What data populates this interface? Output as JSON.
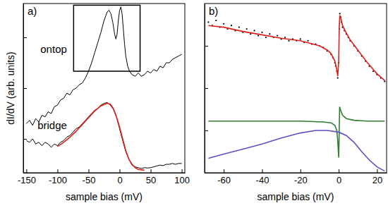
{
  "chart_data": [
    {
      "type": "line",
      "title": "a)",
      "x_label": "sample bias (mV)",
      "y_label": "dI/dV (arb. units)",
      "xlim": [
        -155,
        105
      ],
      "xticks": [
        -150,
        -100,
        -50,
        0,
        50,
        100
      ],
      "ylim": [
        0,
        10
      ],
      "yticks": [
        2,
        5,
        8
      ],
      "tick_labels": "x",
      "box": {
        "x": [
          -74,
          33
        ],
        "y": [
          6.0,
          9.9
        ]
      },
      "series": [
        {
          "name": "ontop",
          "color": "#000000",
          "type": "line",
          "x": [
            -150,
            -145,
            -140,
            -135,
            -130,
            -125,
            -120,
            -115,
            -110,
            -105,
            -100,
            -95,
            -90,
            -85,
            -80,
            -75,
            -70,
            -65,
            -60,
            -55,
            -50,
            -45,
            -40,
            -35,
            -30,
            -25,
            -20,
            -17,
            -14,
            -11,
            -8,
            -6,
            -4,
            -2,
            0,
            2,
            4,
            6,
            8,
            10,
            13,
            16,
            20,
            25,
            30,
            35,
            40,
            45,
            50,
            55,
            60,
            65,
            70,
            75,
            80,
            85,
            90,
            95,
            100
          ],
          "values": [
            2.9,
            3.1,
            2.8,
            3.2,
            3.0,
            3.4,
            3.3,
            3.6,
            3.5,
            3.9,
            4.0,
            4.3,
            4.4,
            4.7,
            4.6,
            4.9,
            5.0,
            5.2,
            5.3,
            5.6,
            6.0,
            6.5,
            7.1,
            7.7,
            8.3,
            9.0,
            9.5,
            9.6,
            9.4,
            8.9,
            8.2,
            7.9,
            8.2,
            9.0,
            9.6,
            9.8,
            9.4,
            8.5,
            7.6,
            6.9,
            6.3,
            6.0,
            5.8,
            5.7,
            5.9,
            5.7,
            5.8,
            6.0,
            5.9,
            6.1,
            6.0,
            6.3,
            6.2,
            6.5,
            6.5,
            6.7,
            6.8,
            6.9,
            7.0
          ]
        },
        {
          "name": "bridge",
          "color": "#000000",
          "type": "line",
          "x": [
            -150,
            -145,
            -140,
            -135,
            -130,
            -125,
            -120,
            -115,
            -110,
            -105,
            -100,
            -95,
            -90,
            -85,
            -80,
            -75,
            -70,
            -65,
            -60,
            -55,
            -50,
            -45,
            -40,
            -35,
            -30,
            -25,
            -20,
            -15,
            -10,
            -5,
            0,
            5,
            10,
            15,
            20,
            25,
            30,
            35,
            40,
            45,
            50,
            55,
            60,
            65,
            70,
            75,
            80,
            85,
            90,
            95,
            100
          ],
          "values": [
            1.9,
            1.8,
            2.0,
            1.7,
            1.8,
            1.6,
            1.8,
            1.7,
            1.5,
            1.7,
            1.6,
            1.8,
            1.9,
            2.1,
            2.2,
            2.4,
            2.6,
            2.7,
            2.9,
            3.1,
            3.3,
            3.5,
            3.7,
            3.8,
            4.0,
            4.1,
            4.15,
            4.0,
            3.75,
            3.3,
            2.6,
            1.9,
            1.25,
            0.8,
            0.45,
            0.35,
            0.3,
            0.25,
            0.3,
            0.28,
            0.3,
            0.35,
            0.4,
            0.45,
            0.42,
            0.5,
            0.5,
            0.55,
            0.5,
            0.55,
            0.55
          ]
        },
        {
          "color": "#e0201b",
          "type": "line",
          "x": [
            -100,
            -90,
            -80,
            -70,
            -60,
            -50,
            -40,
            -30,
            -20,
            -15,
            -10,
            -5,
            0,
            5,
            10,
            15,
            20,
            25,
            30,
            40
          ],
          "values": [
            1.55,
            1.8,
            2.1,
            2.45,
            2.85,
            3.25,
            3.65,
            3.95,
            4.1,
            4.05,
            3.8,
            3.3,
            2.7,
            2.0,
            1.3,
            0.8,
            0.5,
            0.3,
            0.2,
            0.15
          ]
        }
      ]
    },
    {
      "type": "line",
      "title": "b)",
      "x_label": "sample bias (mV)",
      "xlim": [
        -70,
        25
      ],
      "xticks": [
        -60,
        -40,
        -20,
        0,
        20
      ],
      "ylim": [
        0,
        10
      ],
      "yticks": [
        2.5,
        5,
        7.5
      ],
      "tick_labels": "x",
      "series": [
        {
          "color": "#000000",
          "type": "scatter",
          "marker": "dot",
          "x": [
            -68,
            -66,
            -64,
            -62,
            -60,
            -58,
            -56,
            -54,
            -52,
            -50,
            -48,
            -46,
            -44,
            -42,
            -40,
            -38,
            -36,
            -34,
            -32,
            -30,
            -28,
            -26,
            -24,
            -22,
            -20,
            -18,
            -16,
            -14,
            -12,
            -10,
            -8,
            -6,
            -4,
            -3,
            -2,
            -1.5,
            -1,
            -0.5,
            0,
            0.3,
            0.6,
            1,
            1.5,
            2,
            3,
            4,
            5,
            6,
            8,
            10,
            12,
            14,
            16,
            18,
            20,
            22,
            24
          ],
          "values": [
            8.9,
            8.7,
            9.0,
            8.6,
            8.8,
            8.5,
            8.7,
            8.4,
            8.6,
            8.3,
            8.5,
            8.2,
            8.4,
            8.1,
            8.3,
            8.0,
            8.2,
            8.0,
            8.1,
            7.9,
            8.0,
            7.8,
            7.9,
            7.8,
            7.9,
            7.7,
            7.8,
            7.6,
            7.6,
            7.5,
            7.4,
            7.2,
            7.0,
            6.8,
            6.5,
            6.3,
            6.0,
            5.6,
            6.5,
            8.5,
            9.4,
            9.2,
            8.9,
            8.6,
            8.4,
            8.2,
            8.0,
            7.8,
            7.5,
            7.2,
            6.9,
            6.6,
            6.3,
            6.0,
            5.8,
            5.6,
            5.4
          ]
        },
        {
          "color": "#e0201b",
          "type": "line",
          "x": [
            -68,
            -60,
            -50,
            -40,
            -30,
            -20,
            -10,
            -6,
            -4,
            -2,
            -1,
            -0.5,
            0,
            0.3,
            0.6,
            1,
            2,
            4,
            6,
            10,
            15,
            20,
            24
          ],
          "values": [
            8.7,
            8.6,
            8.35,
            8.15,
            7.95,
            7.8,
            7.5,
            7.25,
            7.05,
            6.6,
            6.1,
            5.7,
            6.6,
            8.6,
            9.3,
            9.2,
            8.7,
            8.25,
            7.85,
            7.25,
            6.5,
            5.85,
            5.45
          ]
        },
        {
          "color": "#2e7d32",
          "type": "line",
          "x": [
            -68,
            -20,
            -8,
            -4,
            -2,
            -1,
            -0.5,
            0,
            0.2,
            0.5,
            1,
            2,
            4,
            8,
            15,
            24
          ],
          "values": [
            3.05,
            3.05,
            3.0,
            2.95,
            2.8,
            2.5,
            1.9,
            0.9,
            2.0,
            3.9,
            3.7,
            3.4,
            3.2,
            3.1,
            3.05,
            3.05
          ]
        },
        {
          "color": "#5e4fc4",
          "type": "line",
          "x": [
            -68,
            -60,
            -50,
            -40,
            -30,
            -20,
            -12,
            -6,
            0,
            4,
            8,
            12,
            16,
            20,
            24
          ],
          "values": [
            0.85,
            1.1,
            1.4,
            1.7,
            2.05,
            2.35,
            2.5,
            2.5,
            2.4,
            2.2,
            1.8,
            1.25,
            0.75,
            0.35,
            0.1
          ]
        }
      ]
    }
  ]
}
